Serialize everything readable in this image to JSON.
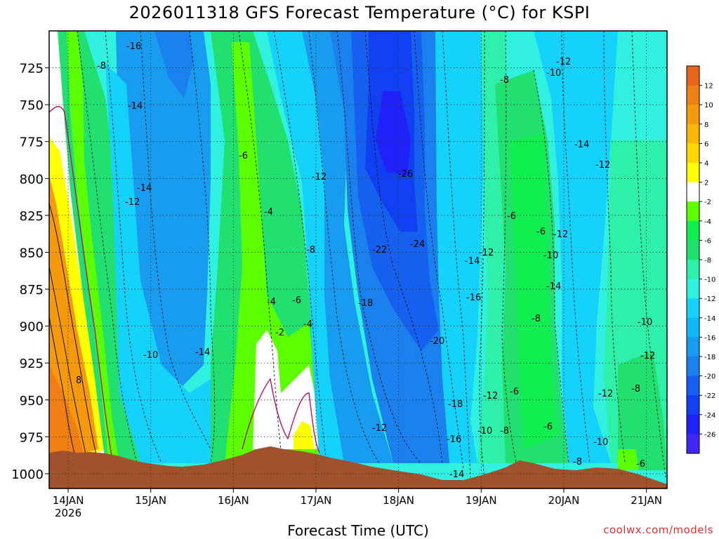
{
  "chart_data": {
    "type": "contour",
    "title": "2026011318 GFS Forecast Temperature (°C) for KSPI",
    "xlabel": "Forecast Time (UTC)",
    "credit": "coolwx.com/models",
    "y_axis": {
      "ticks": [
        725,
        750,
        775,
        800,
        825,
        850,
        875,
        900,
        925,
        950,
        975,
        1000
      ],
      "range": [
        1010,
        700
      ],
      "units": "hPa"
    },
    "x_axis": {
      "ticks": [
        {
          "label": "14JAN",
          "sub": "2026"
        },
        {
          "label": "15JAN",
          "sub": ""
        },
        {
          "label": "16JAN",
          "sub": ""
        },
        {
          "label": "17JAN",
          "sub": ""
        },
        {
          "label": "18JAN",
          "sub": ""
        },
        {
          "label": "19JAN",
          "sub": ""
        },
        {
          "label": "20JAN",
          "sub": ""
        },
        {
          "label": "21JAN",
          "sub": ""
        }
      ],
      "range_days": [
        13.77,
        21.25
      ]
    },
    "grid": true,
    "colorbar": {
      "labels": [
        "12",
        "10",
        "8",
        "6",
        "4",
        "2",
        "-2",
        "-4",
        "-6",
        "-8",
        "-10",
        "-12",
        "-14",
        "-16",
        "-18",
        "-20",
        "-22",
        "-24",
        "-26"
      ],
      "colors": [
        "#e8661c",
        "#f08014",
        "#f59a0c",
        "#fbb80a",
        "#ffd800",
        "#ffff00",
        "#ffffff",
        "#5cff00",
        "#10ee50",
        "#22e070",
        "#2ef0a8",
        "#30f0e0",
        "#14d2fa",
        "#10b8f8",
        "#189cf0",
        "#1a80ee",
        "#1560ee",
        "#1040f2",
        "#2020f8",
        "#4028f4"
      ]
    },
    "contour_labels": [
      "-16",
      "-8",
      "-14",
      "-14",
      "-12",
      "-10",
      "-14",
      "-4",
      "-6",
      "-12",
      "-8",
      "-6",
      "-4",
      "-2",
      "-4",
      "-26",
      "-22",
      "-24",
      "-18",
      "-20",
      "-18",
      "-16",
      "-14",
      "-12",
      "-12",
      "-10",
      "-14",
      "-16",
      "-12",
      "-8",
      "-6",
      "-6",
      "-12",
      "-10",
      "-14",
      "-8",
      "-8",
      "-6",
      "-12",
      "-10",
      "-6",
      "-8",
      "-10",
      "-12",
      "-14",
      "-12",
      "-10",
      "-8",
      "-6",
      "-12",
      "8"
    ]
  }
}
